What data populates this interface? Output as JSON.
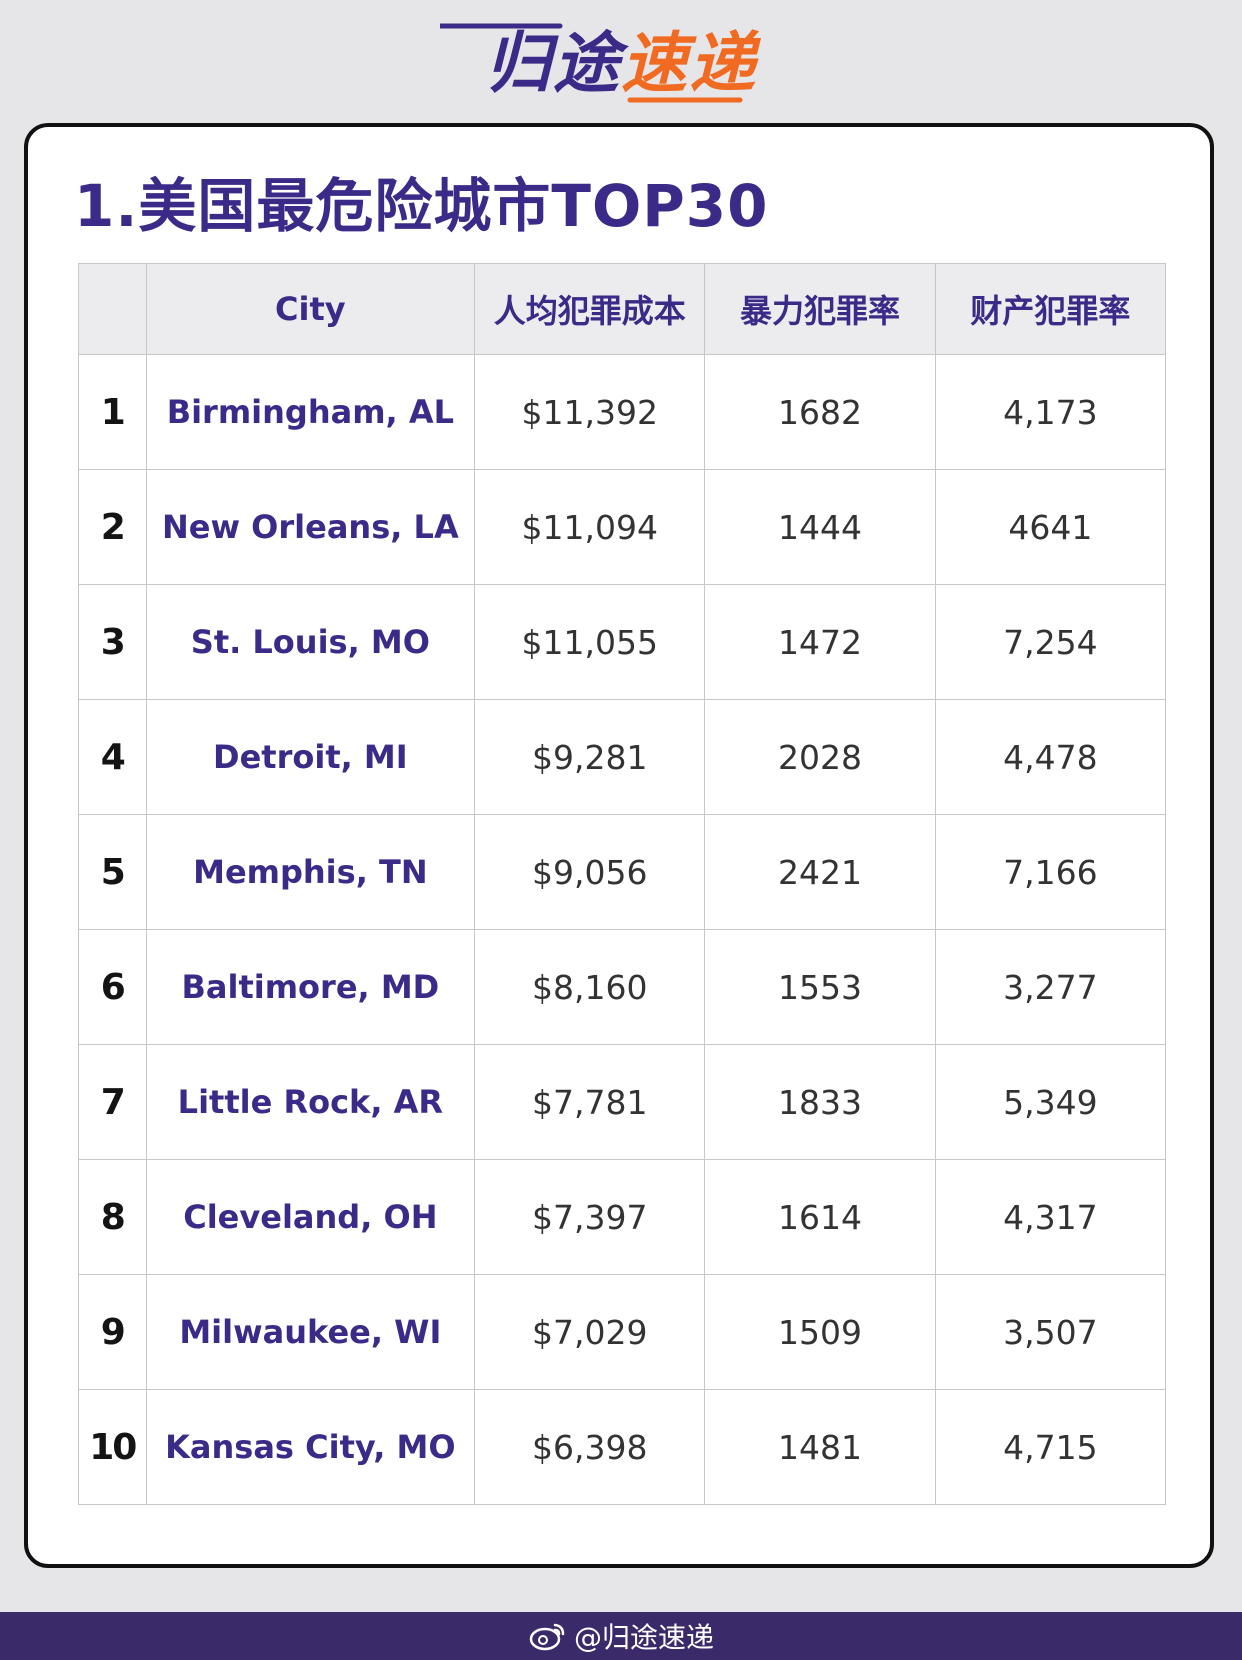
{
  "logo": {
    "part1": "归途",
    "part2": "速递"
  },
  "title": "1.美国最危险城市TOP30",
  "table": {
    "headers": [
      "",
      "City",
      "人均犯罪成本",
      "暴力犯罪率",
      "财产犯罪率"
    ],
    "rows": [
      [
        "1",
        "Birmingham, AL",
        "$11,392",
        "1682",
        "4,173"
      ],
      [
        "2",
        "New Orleans, LA",
        "$11,094",
        "1444",
        "4641"
      ],
      [
        "3",
        "St. Louis, MO",
        "$11,055",
        "1472",
        "7,254"
      ],
      [
        "4",
        "Detroit, MI",
        "$9,281",
        "2028",
        "4,478"
      ],
      [
        "5",
        "Memphis, TN",
        "$9,056",
        "2421",
        "7,166"
      ],
      [
        "6",
        "Baltimore, MD",
        "$8,160",
        "1553",
        "3,277"
      ],
      [
        "7",
        "Little Rock, AR",
        "$7,781",
        "1833",
        "5,349"
      ],
      [
        "8",
        "Cleveland, OH",
        "$7,397",
        "1614",
        "4,317"
      ],
      [
        "9",
        "Milwaukee, WI",
        "$7,029",
        "1509",
        "3,507"
      ],
      [
        "10",
        "Kansas City, MO",
        "$6,398",
        "1481",
        "4,715"
      ]
    ]
  },
  "footer": {
    "handle": "@归途速递",
    "icon": "weibo-icon"
  },
  "colors": {
    "brand_purple": "#3b2a87",
    "brand_orange": "#f06a22",
    "footer_bg": "#3b2a6a"
  }
}
